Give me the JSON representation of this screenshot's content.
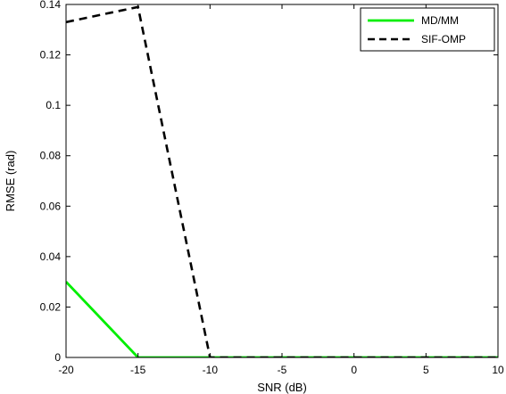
{
  "chart_data": {
    "type": "line",
    "title": "",
    "xlabel": "SNR (dB)",
    "ylabel": "RMSE (rad)",
    "xlim": [
      -20,
      10
    ],
    "ylim": [
      0,
      0.14
    ],
    "x_ticks": [
      "-20",
      "-15",
      "-10",
      "-5",
      "0",
      "5",
      "10"
    ],
    "y_ticks": [
      "0",
      "0.02",
      "0.04",
      "0.06",
      "0.08",
      "0.1",
      "0.12",
      "0.14"
    ],
    "grid": false,
    "legend_position": "top-right",
    "series": [
      {
        "name": "MD/MM",
        "color": "#00ee00",
        "line_style": "solid",
        "x": [
          -20,
          -15,
          -10,
          -5,
          0,
          5,
          10
        ],
        "y": [
          0.03,
          0.0,
          0.0,
          0.0,
          0.0,
          0.0,
          0.0
        ]
      },
      {
        "name": "SIF-OMP",
        "color": "#000000",
        "line_style": "dashed",
        "x": [
          -20,
          -15,
          -10,
          -5,
          0,
          5,
          10
        ],
        "y": [
          0.133,
          0.139,
          0.0,
          0.0,
          0.0,
          0.0,
          0.0
        ]
      }
    ]
  }
}
